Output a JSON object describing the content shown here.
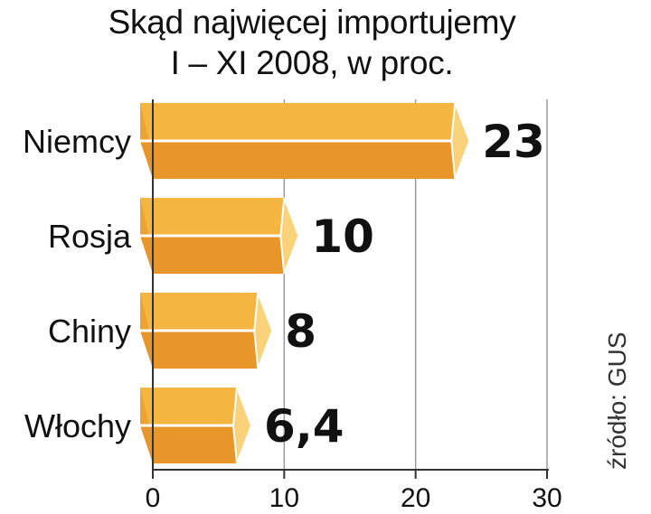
{
  "chart_data": {
    "type": "bar",
    "orientation": "horizontal",
    "title": "Skąd najwięcej importujemy",
    "subtitle": "I – XI 2008, w proc.",
    "categories": [
      "Niemcy",
      "Rosja",
      "Chiny",
      "Włochy"
    ],
    "values": [
      23,
      10,
      8,
      6.4
    ],
    "value_labels": [
      "23",
      "10",
      "8",
      "6,4"
    ],
    "xlim": [
      0,
      30
    ],
    "x_ticks": [
      0,
      10,
      20,
      30
    ],
    "x_tick_labels": [
      "0",
      "10",
      "20",
      "30"
    ],
    "grid": true,
    "source": "źródło: GUS"
  },
  "colors": {
    "bar_top": "#f5b641",
    "bar_bottom": "#e8962a",
    "bar_end": "#fad27a",
    "bar_stripe": "#ffffff",
    "grid": "#9a9a9a",
    "axis": "#333333"
  }
}
